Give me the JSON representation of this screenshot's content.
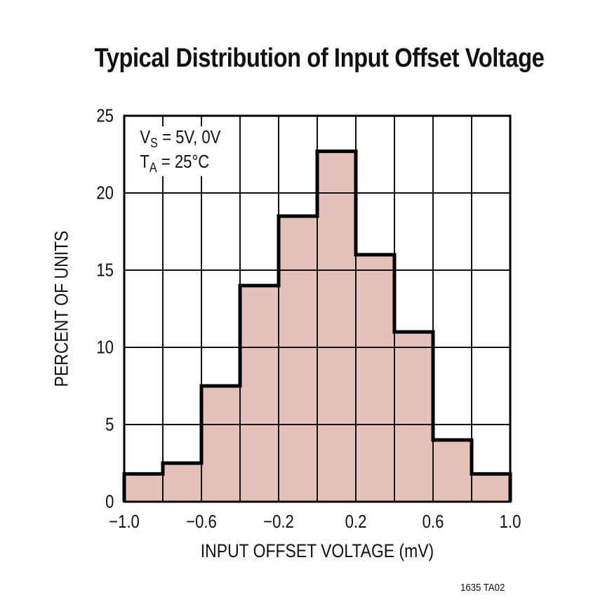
{
  "chart_data": {
    "type": "bar",
    "subtype": "histogram",
    "title": "Typical Distribution of Input Offset Voltage",
    "xlabel": "INPUT OFFSET VOLTAGE (mV)",
    "ylabel": "PERCENT OF UNITS",
    "bin_edges": [
      -1.0,
      -0.8,
      -0.6,
      -0.4,
      -0.2,
      0.0,
      0.2,
      0.4,
      0.6,
      0.8,
      1.0
    ],
    "categories": [
      "-1.0 to -0.8",
      "-0.8 to -0.6",
      "-0.6 to -0.4",
      "-0.4 to -0.2",
      "-0.2 to 0",
      "0 to 0.2",
      "0.2 to 0.4",
      "0.4 to 0.6",
      "0.6 to 0.8",
      "0.8 to 1.0"
    ],
    "values": [
      1.8,
      2.5,
      7.5,
      14.0,
      18.5,
      22.7,
      16.0,
      11.0,
      4.0,
      1.8
    ],
    "xlim": [
      -1.0,
      1.0
    ],
    "ylim": [
      0,
      25
    ],
    "x_ticks": [
      "−1.0",
      "−0.6",
      "−0.2",
      "0.2",
      "0.6",
      "1.0"
    ],
    "y_ticks": [
      "0",
      "5",
      "10",
      "15",
      "20",
      "25"
    ],
    "grid": true,
    "fill_color": "#E4C1BB",
    "annotations": [
      "VS = 5V, 0V",
      "TA = 25°C"
    ]
  },
  "annotation": {
    "vs_main": "V",
    "vs_sub": "S",
    "vs_rest": " = 5V, 0V",
    "ta_main": "T",
    "ta_sub": "A",
    "ta_rest": " = 25°C"
  },
  "figure_code": "1635 TA02"
}
